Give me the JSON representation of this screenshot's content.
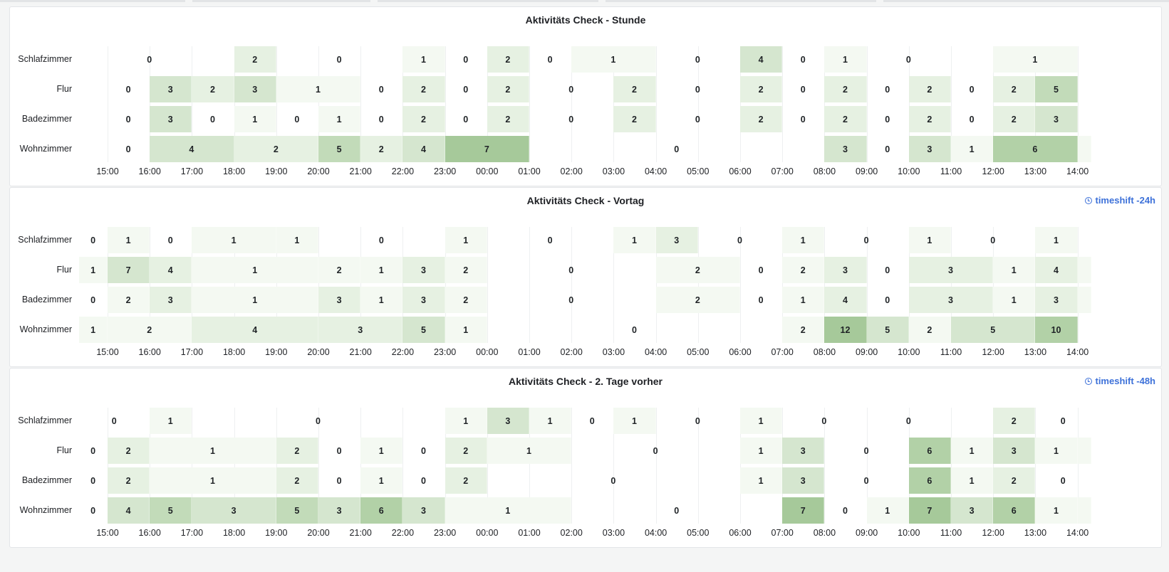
{
  "colors": {
    "accent": "#3d71d9",
    "scale": [
      "#f4f9f2",
      "#e6f1e2",
      "#d5e6cf",
      "#c2dbb9",
      "#b2d1a7",
      "#a6c99a"
    ]
  },
  "panels": [
    {
      "title": "Aktivitäts Check - Stunde",
      "timeshift": "",
      "chart_data": {
        "type": "heatmap",
        "rows": [
          "Schlafzimmer",
          "Flur",
          "Badezimmer",
          "Wohnzimmer"
        ],
        "x_ticks": [
          "15:00",
          "16:00",
          "17:00",
          "18:00",
          "19:00",
          "20:00",
          "21:00",
          "22:00",
          "23:00",
          "00:00",
          "01:00",
          "02:00",
          "03:00",
          "04:00",
          "05:00",
          "06:00",
          "07:00",
          "08:00",
          "09:00",
          "10:00",
          "11:00",
          "12:00",
          "13:00",
          "14:00"
        ],
        "segments": [
          [
            [
              0,
              2,
              0
            ],
            [
              3,
              4,
              2
            ],
            [
              5,
              6,
              0
            ],
            [
              7,
              8,
              1
            ],
            [
              8,
              9,
              0
            ],
            [
              9,
              10,
              2
            ],
            [
              10,
              11,
              0
            ],
            [
              11,
              13,
              1
            ],
            [
              13,
              15,
              0
            ],
            [
              15,
              16,
              4
            ],
            [
              16,
              17,
              0
            ],
            [
              17,
              18,
              1
            ],
            [
              18,
              20,
              0
            ],
            [
              21,
              23,
              1
            ]
          ],
          [
            [
              0,
              1,
              0
            ],
            [
              1,
              2,
              3
            ],
            [
              2,
              3,
              2
            ],
            [
              3,
              4,
              3
            ],
            [
              4,
              6,
              1
            ],
            [
              6,
              7,
              0
            ],
            [
              7,
              8,
              2
            ],
            [
              8,
              9,
              0
            ],
            [
              9,
              10,
              2
            ],
            [
              10,
              12,
              0
            ],
            [
              12,
              13,
              2
            ],
            [
              13,
              15,
              0
            ],
            [
              15,
              16,
              2
            ],
            [
              16,
              17,
              0
            ],
            [
              17,
              18,
              2
            ],
            [
              18,
              19,
              0
            ],
            [
              19,
              20,
              2
            ],
            [
              20,
              21,
              0
            ],
            [
              21,
              22,
              2
            ],
            [
              22,
              23,
              5
            ]
          ],
          [
            [
              0,
              1,
              0
            ],
            [
              1,
              2,
              3
            ],
            [
              2,
              3,
              0
            ],
            [
              3,
              4,
              1
            ],
            [
              4,
              5,
              0
            ],
            [
              5,
              6,
              1
            ],
            [
              6,
              7,
              0
            ],
            [
              7,
              8,
              2
            ],
            [
              8,
              9,
              0
            ],
            [
              9,
              10,
              2
            ],
            [
              10,
              12,
              0
            ],
            [
              12,
              13,
              2
            ],
            [
              13,
              15,
              0
            ],
            [
              15,
              16,
              2
            ],
            [
              16,
              17,
              0
            ],
            [
              17,
              18,
              2
            ],
            [
              18,
              19,
              0
            ],
            [
              19,
              20,
              2
            ],
            [
              20,
              21,
              0
            ],
            [
              21,
              22,
              2
            ],
            [
              22,
              23,
              3
            ]
          ],
          [
            [
              0,
              1,
              0
            ],
            [
              1,
              3,
              4
            ],
            [
              3,
              5,
              2
            ],
            [
              5,
              6,
              5
            ],
            [
              6,
              7,
              2
            ],
            [
              7,
              8,
              4
            ],
            [
              8,
              10,
              7
            ],
            [
              10,
              17,
              0
            ],
            [
              17,
              18,
              3
            ],
            [
              18,
              19,
              0
            ],
            [
              19,
              20,
              3
            ],
            [
              20,
              21,
              1
            ],
            [
              21,
              23,
              6
            ],
            [
              23,
              23.33,
              1
            ]
          ]
        ],
        "max_value": 7
      }
    },
    {
      "title": "Aktivitäts Check - Vortag",
      "timeshift": "timeshift -24h",
      "chart_data": {
        "type": "heatmap",
        "rows": [
          "Schlafzimmer",
          "Flur",
          "Badezimmer",
          "Wohnzimmer"
        ],
        "x_ticks": [
          "15:00",
          "16:00",
          "17:00",
          "18:00",
          "19:00",
          "20:00",
          "21:00",
          "22:00",
          "23:00",
          "00:00",
          "01:00",
          "02:00",
          "03:00",
          "04:00",
          "05:00",
          "06:00",
          "07:00",
          "08:00",
          "09:00",
          "10:00",
          "11:00",
          "12:00",
          "13:00",
          "14:00"
        ],
        "segments": [
          [
            [
              -0.67,
              0,
              0
            ],
            [
              0,
              1,
              1
            ],
            [
              1,
              2,
              0
            ],
            [
              2,
              4,
              1
            ],
            [
              4,
              5,
              1
            ],
            [
              5,
              8,
              0
            ],
            [
              8,
              9,
              1
            ],
            [
              9,
              12,
              0
            ],
            [
              12,
              13,
              1
            ],
            [
              13,
              14,
              3
            ],
            [
              14,
              16,
              0
            ],
            [
              16,
              17,
              1
            ],
            [
              17,
              19,
              0
            ],
            [
              19,
              20,
              1
            ],
            [
              20,
              22,
              0
            ],
            [
              22,
              23,
              1
            ]
          ],
          [
            [
              -0.67,
              0,
              1
            ],
            [
              0,
              1,
              7
            ],
            [
              1,
              2,
              4
            ],
            [
              2,
              5,
              1
            ],
            [
              5,
              6,
              2
            ],
            [
              6,
              7,
              1
            ],
            [
              7,
              8,
              3
            ],
            [
              8,
              9,
              2
            ],
            [
              9,
              13,
              0
            ],
            [
              13,
              15,
              2
            ],
            [
              15,
              16,
              0
            ],
            [
              16,
              17,
              2
            ],
            [
              17,
              18,
              3
            ],
            [
              18,
              19,
              0
            ],
            [
              19,
              21,
              3
            ],
            [
              21,
              22,
              1
            ],
            [
              22,
              23,
              4
            ],
            [
              23,
              23.33,
              1
            ]
          ],
          [
            [
              -0.67,
              0,
              0
            ],
            [
              0,
              1,
              2
            ],
            [
              1,
              2,
              3
            ],
            [
              2,
              5,
              1
            ],
            [
              5,
              6,
              3
            ],
            [
              6,
              7,
              1
            ],
            [
              7,
              8,
              3
            ],
            [
              8,
              9,
              2
            ],
            [
              9,
              13,
              0
            ],
            [
              13,
              15,
              2
            ],
            [
              15,
              16,
              0
            ],
            [
              16,
              17,
              1
            ],
            [
              17,
              18,
              4
            ],
            [
              18,
              19,
              0
            ],
            [
              19,
              21,
              3
            ],
            [
              21,
              22,
              1
            ],
            [
              22,
              23,
              3
            ],
            [
              23,
              23.33,
              1
            ]
          ],
          [
            [
              -0.67,
              0,
              1
            ],
            [
              0,
              2,
              2
            ],
            [
              2,
              5,
              4
            ],
            [
              5,
              7,
              3
            ],
            [
              7,
              8,
              5
            ],
            [
              8,
              9,
              1
            ],
            [
              9,
              16,
              0
            ],
            [
              16,
              17,
              2
            ],
            [
              17,
              18,
              12
            ],
            [
              18,
              19,
              5
            ],
            [
              19,
              20,
              2
            ],
            [
              20,
              22,
              5
            ],
            [
              22,
              23,
              10
            ]
          ]
        ],
        "max_value": 12
      }
    },
    {
      "title": "Aktivitäts Check - 2. Tage vorher",
      "timeshift": "timeshift -48h",
      "chart_data": {
        "type": "heatmap",
        "rows": [
          "Schlafzimmer",
          "Flur",
          "Badezimmer",
          "Wohnzimmer"
        ],
        "x_ticks": [
          "15:00",
          "16:00",
          "17:00",
          "18:00",
          "19:00",
          "20:00",
          "21:00",
          "22:00",
          "23:00",
          "00:00",
          "01:00",
          "02:00",
          "03:00",
          "04:00",
          "05:00",
          "06:00",
          "07:00",
          "08:00",
          "09:00",
          "10:00",
          "11:00",
          "12:00",
          "13:00",
          "14:00"
        ],
        "segments": [
          [
            [
              -0.67,
              1,
              0
            ],
            [
              1,
              2,
              1
            ],
            [
              2,
              8,
              0
            ],
            [
              8,
              9,
              1
            ],
            [
              9,
              10,
              3
            ],
            [
              10,
              11,
              1
            ],
            [
              11,
              12,
              0
            ],
            [
              12,
              13,
              1
            ],
            [
              13,
              15,
              0
            ],
            [
              15,
              16,
              1
            ],
            [
              16,
              18,
              0
            ],
            [
              18,
              20,
              0
            ],
            [
              21,
              22,
              2
            ],
            [
              22,
              23.33,
              0
            ]
          ],
          [
            [
              -0.67,
              0,
              0
            ],
            [
              0,
              1,
              2
            ],
            [
              1,
              4,
              1
            ],
            [
              4,
              5,
              2
            ],
            [
              5,
              6,
              0
            ],
            [
              6,
              7,
              1
            ],
            [
              7,
              8,
              0
            ],
            [
              8,
              9,
              2
            ],
            [
              9,
              11,
              1
            ],
            [
              11,
              15,
              0
            ],
            [
              15,
              16,
              1
            ],
            [
              16,
              17,
              3
            ],
            [
              17,
              19,
              0
            ],
            [
              19,
              20,
              6
            ],
            [
              20,
              21,
              1
            ],
            [
              21,
              22,
              3
            ],
            [
              22,
              23,
              1
            ],
            [
              23,
              23.33,
              1
            ]
          ],
          [
            [
              -0.67,
              0,
              0
            ],
            [
              0,
              1,
              2
            ],
            [
              1,
              4,
              1
            ],
            [
              4,
              5,
              2
            ],
            [
              5,
              6,
              0
            ],
            [
              6,
              7,
              1
            ],
            [
              7,
              8,
              0
            ],
            [
              8,
              9,
              2
            ],
            [
              9,
              15,
              0
            ],
            [
              15,
              16,
              1
            ],
            [
              16,
              17,
              3
            ],
            [
              17,
              19,
              0
            ],
            [
              19,
              20,
              6
            ],
            [
              20,
              21,
              1
            ],
            [
              21,
              22,
              2
            ],
            [
              22,
              23.33,
              0
            ]
          ],
          [
            [
              -0.67,
              0,
              0
            ],
            [
              0,
              1,
              4
            ],
            [
              1,
              2,
              5
            ],
            [
              2,
              4,
              3
            ],
            [
              4,
              5,
              5
            ],
            [
              5,
              6,
              3
            ],
            [
              6,
              7,
              6
            ],
            [
              7,
              8,
              3
            ],
            [
              8,
              11,
              1
            ],
            [
              11,
              16,
              0
            ],
            [
              16,
              17,
              7
            ],
            [
              17,
              18,
              0
            ],
            [
              18,
              19,
              1
            ],
            [
              19,
              20,
              7
            ],
            [
              20,
              21,
              3
            ],
            [
              21,
              22,
              6
            ],
            [
              22,
              23,
              1
            ],
            [
              23,
              23.33,
              1
            ]
          ]
        ],
        "max_value": 7
      }
    }
  ]
}
